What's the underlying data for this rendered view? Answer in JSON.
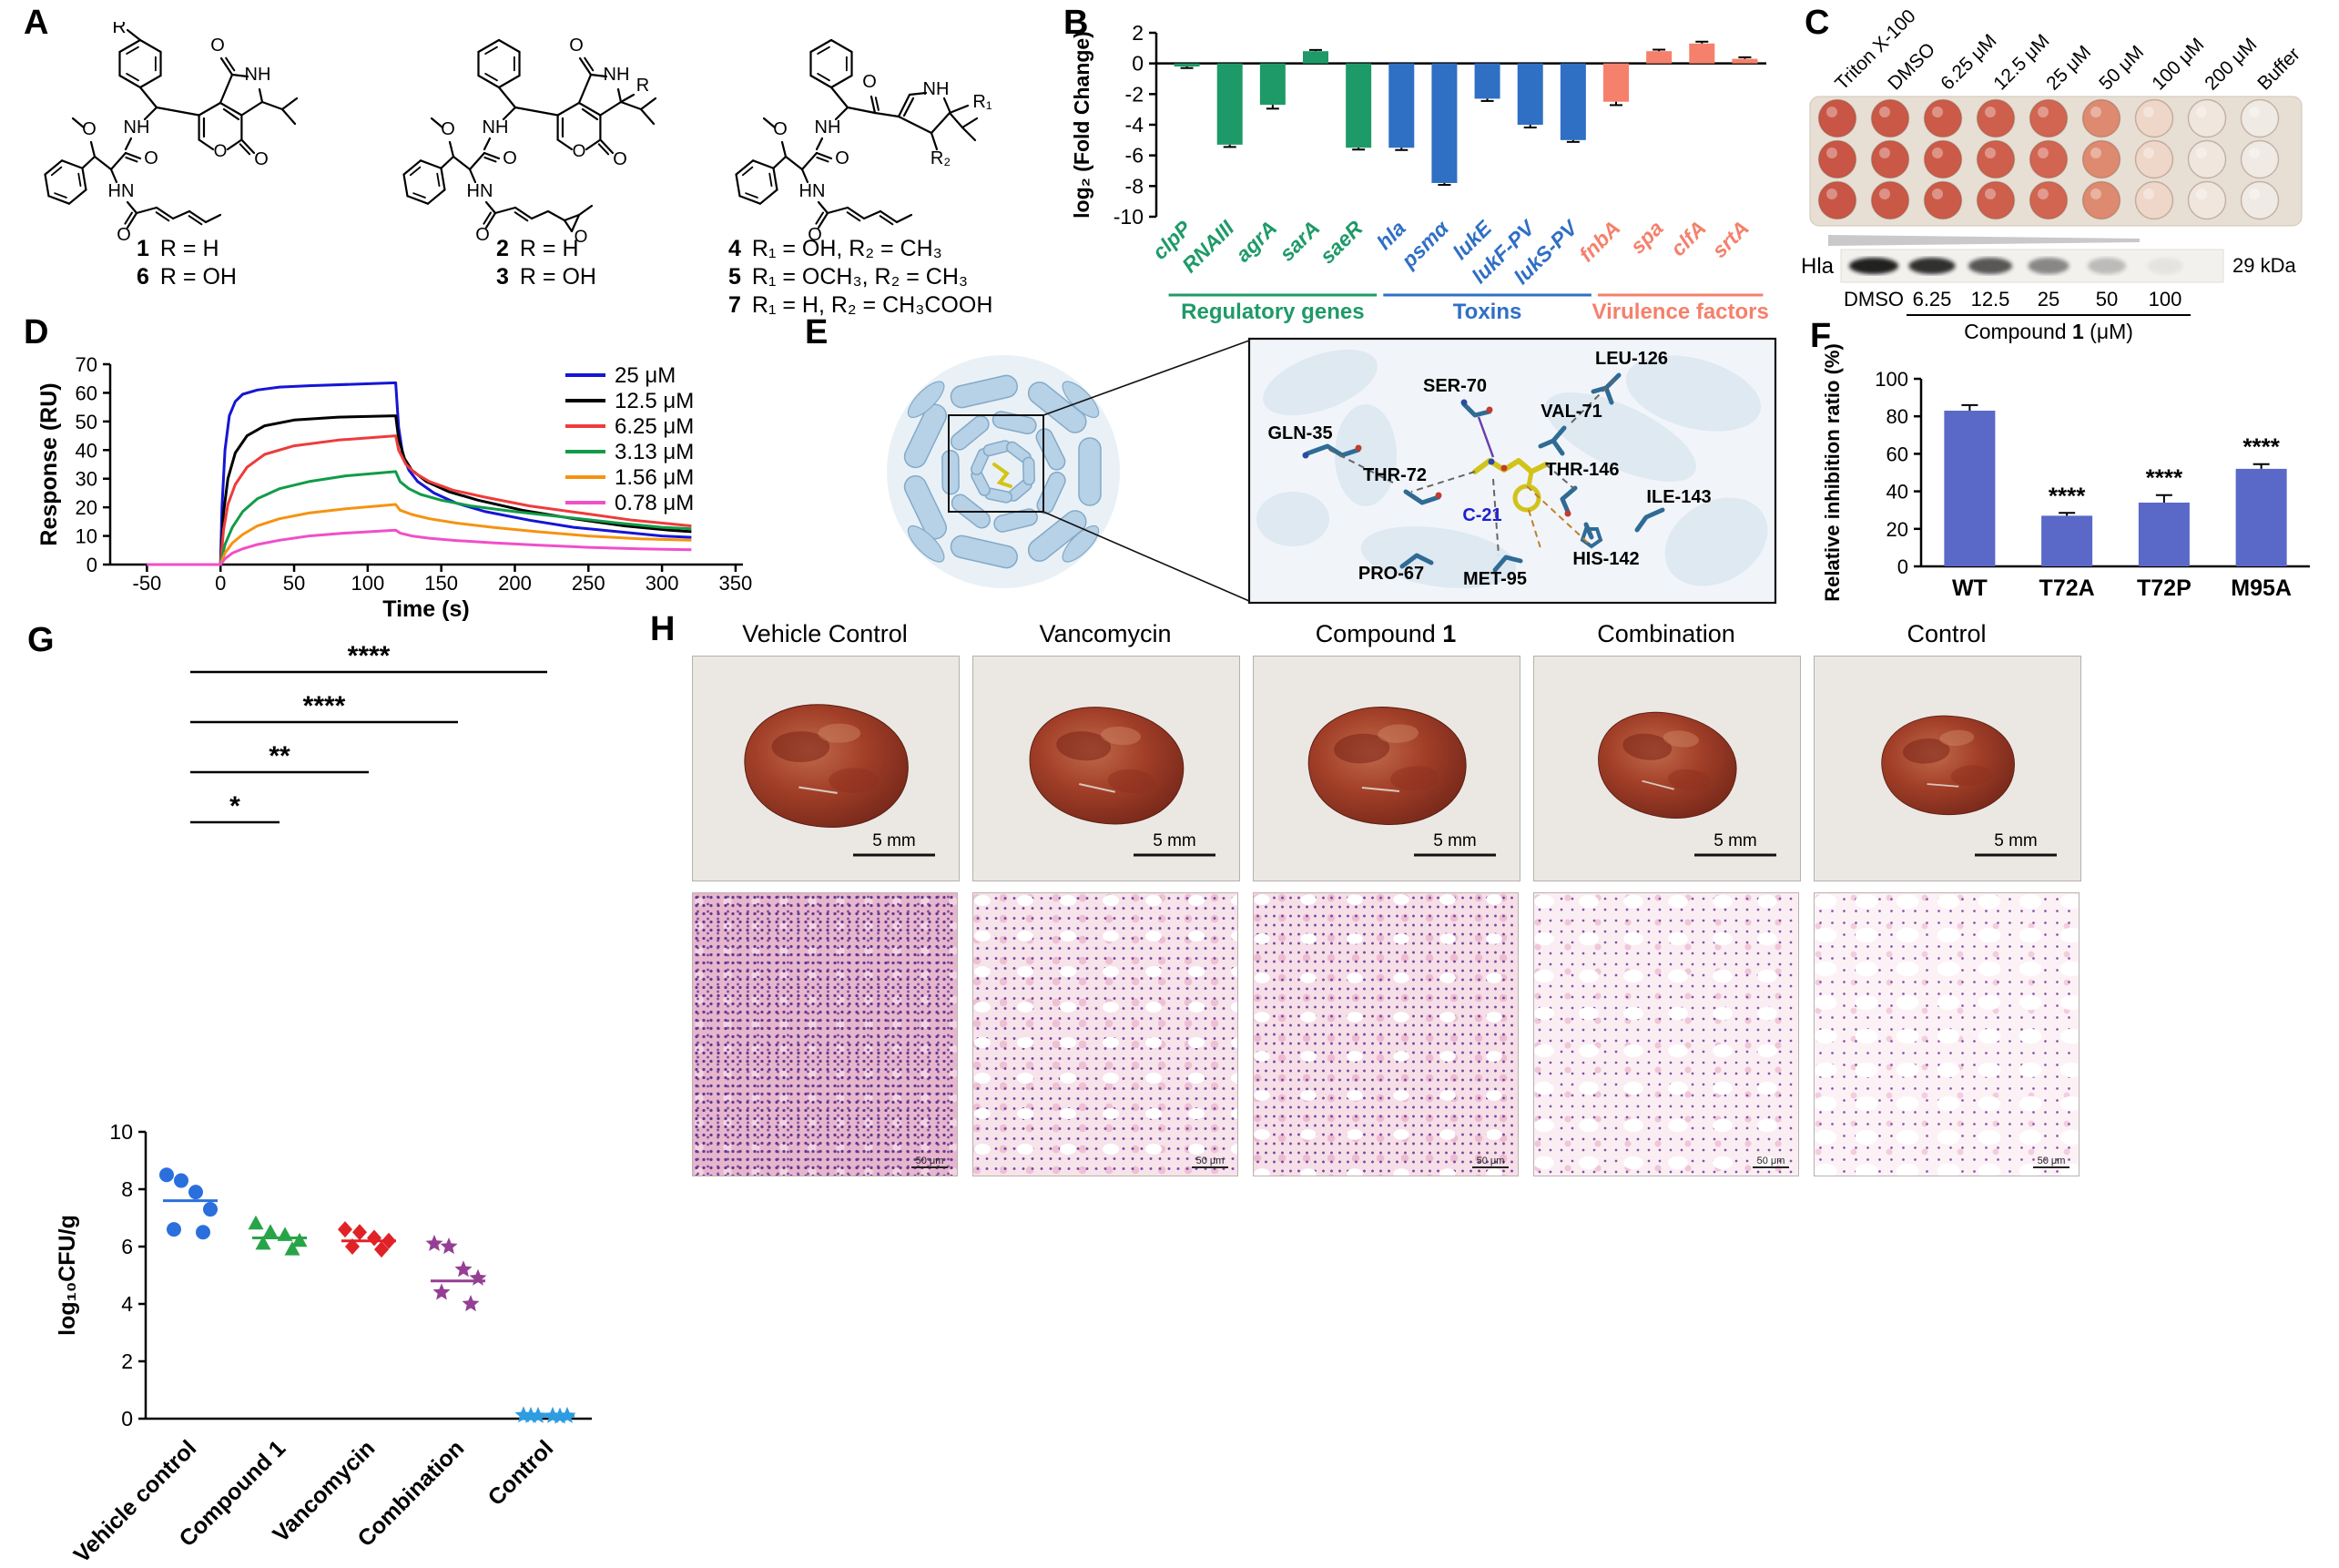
{
  "panels": {
    "A": "A",
    "B": "B",
    "C": "C",
    "D": "D",
    "E": "E",
    "F": "F",
    "G": "G",
    "H": "H"
  },
  "panelA": {
    "captions": [
      [
        {
          "num": "1",
          "rest": "R = H"
        },
        {
          "num": "6",
          "rest": "R = OH"
        }
      ],
      [
        {
          "num": "2",
          "rest": "R = H"
        },
        {
          "num": "3",
          "rest": "R = OH"
        }
      ],
      [
        {
          "num": "4",
          "rest": "R₁ = OH, R₂ = CH₃"
        },
        {
          "num": "5",
          "rest": "R₁ = OCH₃, R₂ = CH₃"
        },
        {
          "num": "7",
          "rest": "R₁ = H, R₂ = CH₃COOH"
        }
      ]
    ],
    "atom_labels": [
      {
        "r": "R",
        "ome": "O",
        "n1": "NH",
        "o1": "O",
        "n2": "HN",
        "o2": "O",
        "ring_o": "O",
        "lactone_o": "O",
        "pent_n": "NH",
        "pent_o": "O"
      },
      {
        "r": "R",
        "ome": "O",
        "n1": "NH",
        "o1": "O",
        "n2": "HN",
        "o2": "O",
        "ring_o": "O",
        "lactone_o": "O",
        "pent_n": "NH",
        "pent_o": "O",
        "epox_o": "O"
      },
      {
        "ome": "O",
        "n1": "NH",
        "o1": "O",
        "n2": "HN",
        "o2": "O",
        "keto_o": "O",
        "pent_n": "NH",
        "r1": "R₁",
        "r2": "R₂"
      }
    ]
  },
  "panelC": {
    "column_labels": [
      "Triton X-100",
      "DMSO",
      "6.25 μM",
      "12.5 μM",
      "25 μM",
      "50 μM",
      "100 μM",
      "200 μM",
      "Buffer"
    ],
    "well_colors": [
      "#c85545",
      "#ca5847",
      "#cc5a48",
      "#ce5f4c",
      "#d16551",
      "#dd8a70",
      "#eed6c8",
      "#f1e6dd",
      "#f0eae4"
    ],
    "rows": 3,
    "blot": {
      "protein_label": "Hla",
      "mass_label": "29 kDa",
      "lanes": [
        "DMSO",
        "6.25",
        "12.5",
        "25",
        "50",
        "100"
      ],
      "band_intensities": [
        0.95,
        0.88,
        0.7,
        0.48,
        0.24,
        0.06
      ],
      "axis_label_parts": [
        "Compound ",
        "1",
        " (μM)"
      ]
    }
  },
  "panelE": {
    "residues": [
      "GLN-35",
      "SER-70",
      "VAL-71",
      "LEU-126",
      "THR-72",
      "THR-146",
      "ILE-143",
      "PRO-67",
      "MET-95",
      "HIS-142"
    ],
    "ligand_label": "C-21"
  },
  "panelH": {
    "columns": [
      {
        "pre": "Vehicle Control",
        "bold": ""
      },
      {
        "pre": "Vancomycin",
        "bold": ""
      },
      {
        "pre": "Compound ",
        "bold": "1"
      },
      {
        "pre": "Combination",
        "bold": ""
      },
      {
        "pre": "Control",
        "bold": ""
      }
    ],
    "scale_top": "5 mm",
    "scale_bottom": "50 μm"
  },
  "chart_data": [
    {
      "id": "panelB",
      "type": "bar",
      "ylabel": "log₂ (Fold Change)",
      "ylim": [
        -10,
        2
      ],
      "yticks": [
        2,
        0,
        -2,
        -4,
        -6,
        -8,
        -10
      ],
      "categories": [
        "clpP",
        "RNAIII",
        "agrA",
        "sarA",
        "saeR",
        "hla",
        "psmα",
        "lukE",
        "lukF-PV",
        "lukS-PV",
        "fnbA",
        "spa",
        "clfA",
        "srtA"
      ],
      "values": [
        -0.2,
        -5.3,
        -2.7,
        0.8,
        -5.5,
        -5.5,
        -7.8,
        -2.3,
        -4.0,
        -5.0,
        -2.5,
        0.8,
        1.3,
        0.3
      ],
      "errors": [
        0.1,
        0.15,
        0.25,
        0.08,
        0.12,
        0.15,
        0.12,
        0.15,
        0.18,
        0.12,
        0.22,
        0.1,
        0.12,
        0.1
      ],
      "groups": [
        {
          "label": "Regulatory genes",
          "color": "#1e9a68",
          "from": 0,
          "to": 4
        },
        {
          "label": "Toxins",
          "color": "#2f6fc4",
          "from": 5,
          "to": 9
        },
        {
          "label": "Virulence factors",
          "color": "#f5806b",
          "from": 10,
          "to": 13
        }
      ]
    },
    {
      "id": "panelD",
      "type": "line",
      "xlabel": "Time (s)",
      "ylabel": "Response (RU)",
      "xlim": [
        -75,
        355
      ],
      "ylim": [
        0,
        70
      ],
      "xticks": [
        -50,
        0,
        50,
        100,
        150,
        200,
        250,
        300,
        350
      ],
      "yticks": [
        0,
        10,
        20,
        30,
        40,
        50,
        60,
        70
      ],
      "legend_position": "top-right",
      "series": [
        {
          "name": "25 μM",
          "color": "#1515d6",
          "points": [
            [
              -50,
              0
            ],
            [
              0,
              0
            ],
            [
              1,
              20
            ],
            [
              3,
              40
            ],
            [
              6,
              52
            ],
            [
              10,
              57
            ],
            [
              15,
              59.5
            ],
            [
              25,
              61
            ],
            [
              40,
              62
            ],
            [
              60,
              62.5
            ],
            [
              90,
              63
            ],
            [
              119,
              63.5
            ],
            [
              121,
              48
            ],
            [
              124,
              38
            ],
            [
              128,
              33
            ],
            [
              134,
              29
            ],
            [
              145,
              25
            ],
            [
              160,
              21.5
            ],
            [
              180,
              18.5
            ],
            [
              210,
              15.5
            ],
            [
              240,
              13
            ],
            [
              270,
              11.5
            ],
            [
              300,
              10
            ],
            [
              320,
              9.5
            ]
          ]
        },
        {
          "name": "12.5 μM",
          "color": "#000000",
          "points": [
            [
              -50,
              0
            ],
            [
              0,
              0
            ],
            [
              2,
              18
            ],
            [
              5,
              30
            ],
            [
              10,
              39
            ],
            [
              18,
              45
            ],
            [
              30,
              48.5
            ],
            [
              50,
              50.5
            ],
            [
              80,
              51.5
            ],
            [
              119,
              52
            ],
            [
              121,
              44
            ],
            [
              125,
              37
            ],
            [
              130,
              33
            ],
            [
              140,
              29
            ],
            [
              155,
              25.5
            ],
            [
              175,
              22.5
            ],
            [
              205,
              19
            ],
            [
              240,
              16
            ],
            [
              275,
              13.5
            ],
            [
              305,
              12
            ],
            [
              320,
              11.5
            ]
          ]
        },
        {
          "name": "6.25 μM",
          "color": "#ee3b3b",
          "points": [
            [
              -50,
              0
            ],
            [
              0,
              0
            ],
            [
              2,
              12
            ],
            [
              5,
              21
            ],
            [
              10,
              28
            ],
            [
              18,
              34
            ],
            [
              30,
              38.5
            ],
            [
              50,
              41.5
            ],
            [
              80,
              43.5
            ],
            [
              119,
              45
            ],
            [
              121,
              40
            ],
            [
              126,
              35
            ],
            [
              132,
              32
            ],
            [
              142,
              29
            ],
            [
              158,
              26
            ],
            [
              180,
              23.5
            ],
            [
              210,
              20.5
            ],
            [
              245,
              18
            ],
            [
              280,
              15.5
            ],
            [
              310,
              14
            ],
            [
              320,
              13.5
            ]
          ]
        },
        {
          "name": "3.13 μM",
          "color": "#119b48",
          "points": [
            [
              -50,
              0
            ],
            [
              0,
              0
            ],
            [
              3,
              7
            ],
            [
              8,
              13
            ],
            [
              15,
              18.5
            ],
            [
              25,
              23
            ],
            [
              40,
              26.5
            ],
            [
              60,
              29
            ],
            [
              85,
              31
            ],
            [
              119,
              32.5
            ],
            [
              122,
              29
            ],
            [
              128,
              26.5
            ],
            [
              136,
              24.5
            ],
            [
              150,
              22.5
            ],
            [
              170,
              20.5
            ],
            [
              200,
              18.5
            ],
            [
              235,
              16.5
            ],
            [
              270,
              14.5
            ],
            [
              300,
              13
            ],
            [
              320,
              12.5
            ]
          ]
        },
        {
          "name": "1.56 μM",
          "color": "#f59311",
          "points": [
            [
              -50,
              0
            ],
            [
              0,
              0
            ],
            [
              3,
              4
            ],
            [
              8,
              7.5
            ],
            [
              15,
              10.5
            ],
            [
              25,
              13.5
            ],
            [
              40,
              16
            ],
            [
              60,
              18
            ],
            [
              85,
              19.5
            ],
            [
              119,
              21
            ],
            [
              122,
              19
            ],
            [
              130,
              17.5
            ],
            [
              142,
              16
            ],
            [
              160,
              14.5
            ],
            [
              185,
              13
            ],
            [
              215,
              11.5
            ],
            [
              250,
              10
            ],
            [
              285,
              9
            ],
            [
              320,
              8.5
            ]
          ]
        },
        {
          "name": "0.78 μM",
          "color": "#f04fc8",
          "points": [
            [
              -50,
              0
            ],
            [
              0,
              0
            ],
            [
              3,
              2
            ],
            [
              8,
              4
            ],
            [
              15,
              5.5
            ],
            [
              25,
              7
            ],
            [
              40,
              8.5
            ],
            [
              60,
              10
            ],
            [
              85,
              11
            ],
            [
              119,
              12
            ],
            [
              122,
              11
            ],
            [
              130,
              10
            ],
            [
              142,
              9.2
            ],
            [
              160,
              8.4
            ],
            [
              185,
              7.6
            ],
            [
              215,
              6.8
            ],
            [
              250,
              6
            ],
            [
              285,
              5.5
            ],
            [
              320,
              5.2
            ]
          ]
        }
      ]
    },
    {
      "id": "panelF",
      "type": "bar",
      "ylabel": "Relative inhibition ratio (%)",
      "ylim": [
        0,
        100
      ],
      "yticks": [
        0,
        20,
        40,
        60,
        80,
        100
      ],
      "categories": [
        "WT",
        "T72A",
        "T72P",
        "M95A"
      ],
      "values": [
        83,
        27,
        34,
        52
      ],
      "errors": [
        3,
        1.5,
        4,
        2.5
      ],
      "significance": [
        "",
        "****",
        "****",
        "****"
      ],
      "bar_color": "#5a68c8"
    },
    {
      "id": "panelG",
      "type": "scatter",
      "ylabel": "log₁₀CFU/g",
      "ylim": [
        0,
        10
      ],
      "yticks": [
        0,
        2,
        4,
        6,
        8,
        10
      ],
      "groups": [
        {
          "name": "Vehicle control",
          "color": "#2b6fdd",
          "marker": "circle",
          "points": [
            8.5,
            8.3,
            7.9,
            7.3,
            6.6,
            6.5
          ],
          "mean": 7.6
        },
        {
          "name": "Compound 1",
          "color": "#27a447",
          "marker": "triangle",
          "points": [
            6.8,
            6.5,
            6.4,
            6.2,
            6.1,
            5.9
          ],
          "mean": 6.3
        },
        {
          "name": "Vancomycin",
          "color": "#e02227",
          "marker": "diamond",
          "points": [
            6.6,
            6.5,
            6.3,
            6.2,
            6.0,
            5.9
          ],
          "mean": 6.2
        },
        {
          "name": "Combination",
          "color": "#943f94",
          "marker": "star",
          "points": [
            6.1,
            6.0,
            5.2,
            4.9,
            4.4,
            4.0
          ],
          "mean": 4.8
        },
        {
          "name": "Control",
          "color": "#2e9ce0",
          "marker": "star",
          "points": [
            0.12,
            0.1,
            0.1,
            0.1,
            0.1,
            0.08
          ],
          "mean": 0.1
        }
      ],
      "comparisons": [
        {
          "to": 1,
          "label": "*"
        },
        {
          "to": 2,
          "label": "**"
        },
        {
          "to": 3,
          "label": "****"
        },
        {
          "to": 4,
          "label": "****"
        }
      ]
    }
  ]
}
